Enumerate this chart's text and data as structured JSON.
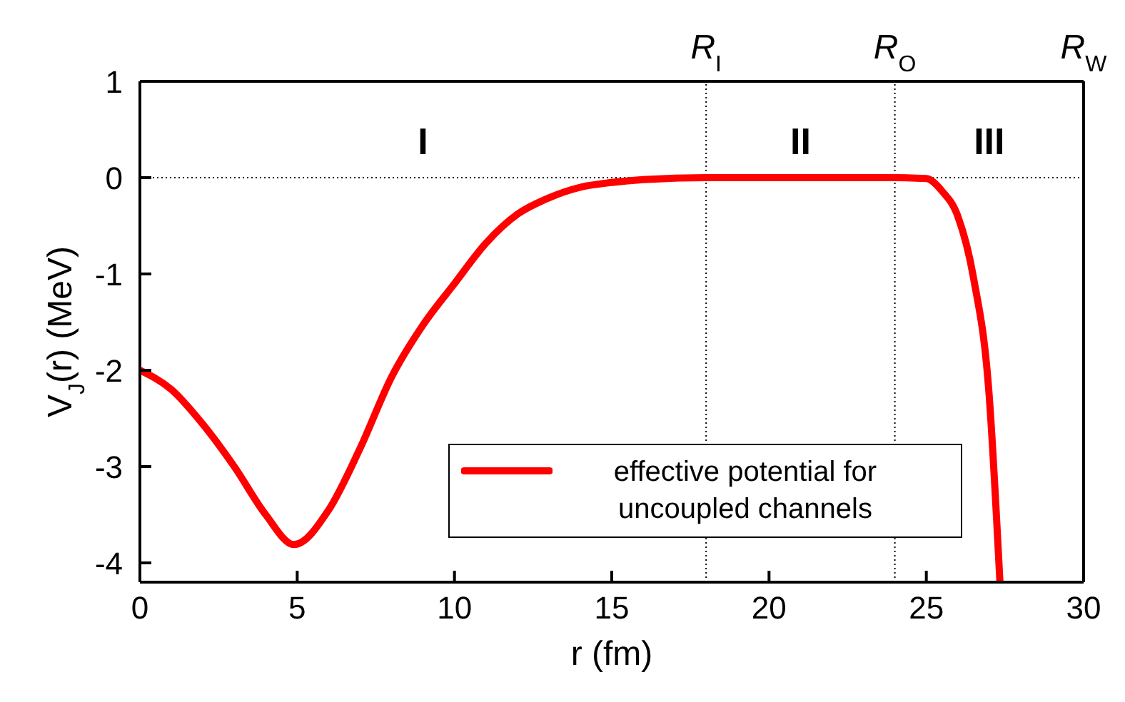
{
  "chart_data": {
    "type": "line",
    "xlabel": "r (fm)",
    "ylabel": "V$_{J}$(r)  (MeV)",
    "x": [
      0,
      1,
      2,
      3,
      4,
      4.9,
      6,
      7,
      8,
      9,
      10,
      11,
      12,
      13,
      14,
      15,
      16,
      18,
      21,
      24,
      25,
      25.5,
      26,
      26.5,
      27,
      27.34
    ],
    "series": [
      {
        "name": "effective potential for uncoupled channels",
        "color": "#ff0000",
        "values": [
          -2.0,
          -2.2,
          -2.56,
          -3.0,
          -3.5,
          -3.81,
          -3.45,
          -2.81,
          -2.07,
          -1.53,
          -1.1,
          -0.68,
          -0.38,
          -0.21,
          -0.1,
          -0.05,
          -0.02,
          0,
          0,
          0,
          -0.01,
          -0.14,
          -0.4,
          -1.04,
          -2.27,
          -4.2
        ]
      }
    ],
    "xlim": [
      0,
      30
    ],
    "xticks": [
      0,
      5,
      10,
      15,
      20,
      25,
      30
    ],
    "ylim": [
      -4.2,
      1
    ],
    "yticks": [
      -4,
      -3,
      -2,
      -1,
      0,
      1
    ],
    "ref_lines": [
      {
        "axis": "y",
        "value": 0,
        "label": null,
        "color": "#000000",
        "line_style": "dotted"
      },
      {
        "axis": "x",
        "value": 18,
        "label": "R$_{I}$",
        "color": "#000000",
        "line_style": "dotted"
      },
      {
        "axis": "x",
        "value": 24,
        "label": "R$_{O}$",
        "color": "#000000",
        "line_style": "dotted"
      },
      {
        "axis": "x",
        "value": 30,
        "label": "R$_{W}$",
        "color": "#000000",
        "line_style": "solid"
      }
    ],
    "annotations": [
      "I",
      "II",
      "III"
    ],
    "legend": "bottom",
    "grid": false,
    "marker": "none",
    "line_style": "solid"
  }
}
